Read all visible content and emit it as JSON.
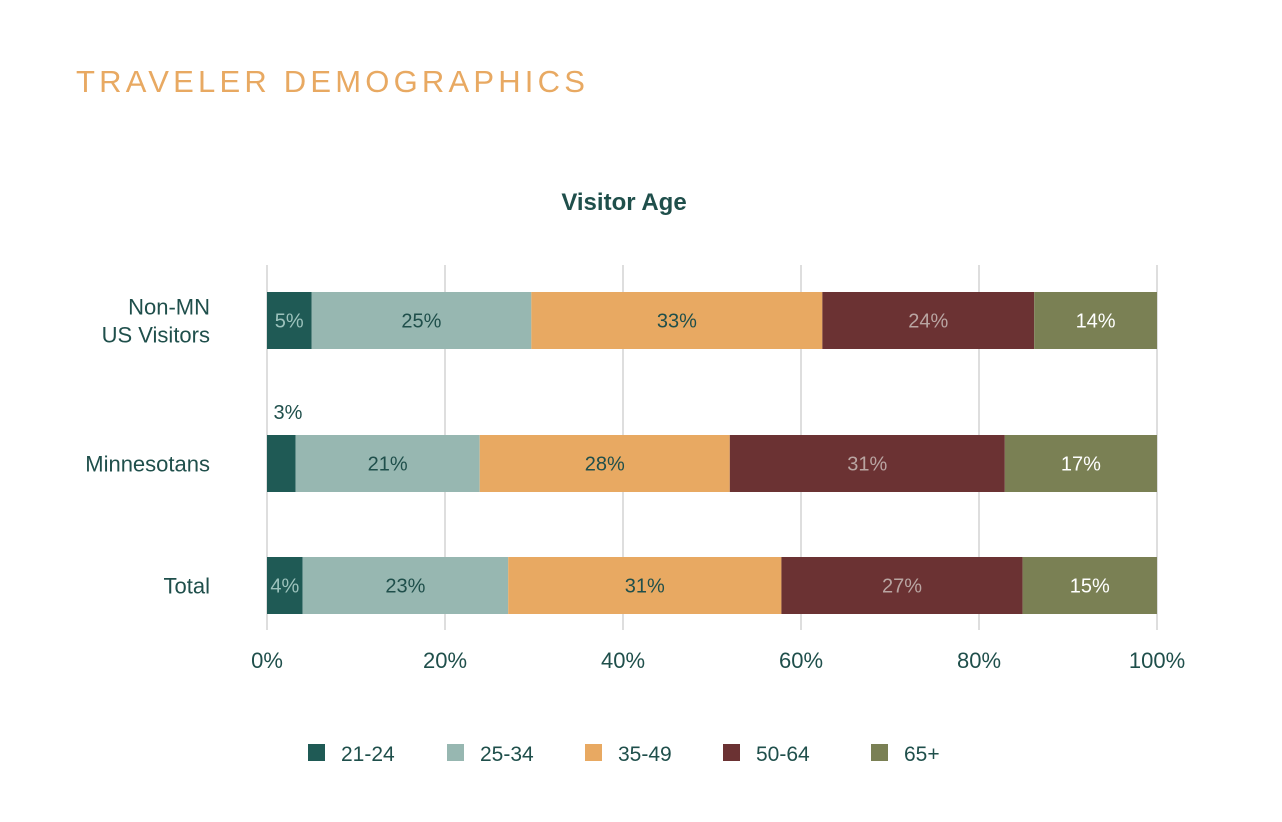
{
  "page": {
    "section_title": "TRAVELER DEMOGRAPHICS"
  },
  "colors": {
    "accent": "#e8a962",
    "text": "#1f4f4b",
    "gridline": "#dedede"
  },
  "chart_data": {
    "type": "bar",
    "orientation": "horizontal",
    "stacked": true,
    "title": "Visitor Age",
    "xlabel": "",
    "ylabel": "",
    "xlim": [
      0,
      100
    ],
    "x_ticks": [
      "0%",
      "20%",
      "40%",
      "60%",
      "80%",
      "100%"
    ],
    "grid": true,
    "legend_position": "bottom",
    "categories": [
      [
        "Non-MN",
        "US Visitors"
      ],
      [
        "Minnesotans"
      ],
      [
        "Total"
      ]
    ],
    "series": [
      {
        "name": "21-24",
        "color": "#1f5a55",
        "values": [
          5,
          3.2,
          4
        ],
        "labels": [
          "5%",
          "3%",
          "4%"
        ],
        "label_color": "#9cc2bc"
      },
      {
        "name": "25-34",
        "color": "#97b7b1",
        "values": [
          24.7,
          20.7,
          23.1
        ],
        "labels": [
          "25%",
          "21%",
          "23%"
        ],
        "label_color": "#1f4f4b"
      },
      {
        "name": "35-49",
        "color": "#e8a962",
        "values": [
          32.7,
          28.1,
          30.7
        ],
        "labels": [
          "33%",
          "28%",
          "31%"
        ],
        "label_color": "#1f4f4b"
      },
      {
        "name": "50-64",
        "color": "#6b3233",
        "values": [
          23.8,
          30.9,
          27.1
        ],
        "labels": [
          "24%",
          "31%",
          "27%"
        ],
        "label_color": "#b9a5a2"
      },
      {
        "name": "65+",
        "color": "#7a8054",
        "values": [
          13.8,
          17.1,
          15.1
        ],
        "labels": [
          "14%",
          "17%",
          "15%"
        ],
        "label_color": "#ffffff"
      }
    ]
  }
}
